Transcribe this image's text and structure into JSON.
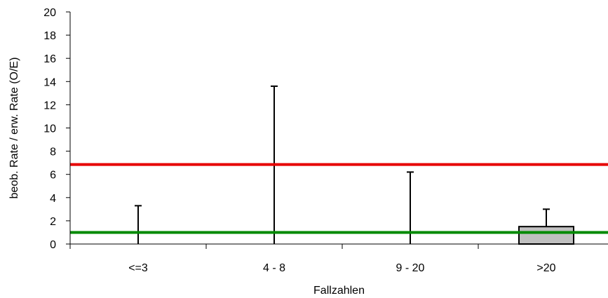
{
  "chart_data": {
    "type": "bar",
    "title": "",
    "xlabel": "Fallzahlen",
    "ylabel": "beob. Rate / erw. Rate (O/E)",
    "ylim": [
      0,
      20
    ],
    "yticks": [
      0,
      2,
      4,
      6,
      8,
      10,
      12,
      14,
      16,
      18,
      20
    ],
    "categories": [
      "<=3",
      "4 - 8",
      "9 - 20",
      ">20"
    ],
    "values": [
      0,
      0,
      0,
      1.5
    ],
    "error_upper": [
      3.3,
      13.6,
      6.2,
      3.0
    ],
    "bar_color": "#c0c0c0",
    "reference_lines": [
      {
        "value": 6.85,
        "color": "#e60000"
      },
      {
        "value": 1.0,
        "color": "#008a00"
      }
    ],
    "grid": false,
    "legend": "none"
  }
}
